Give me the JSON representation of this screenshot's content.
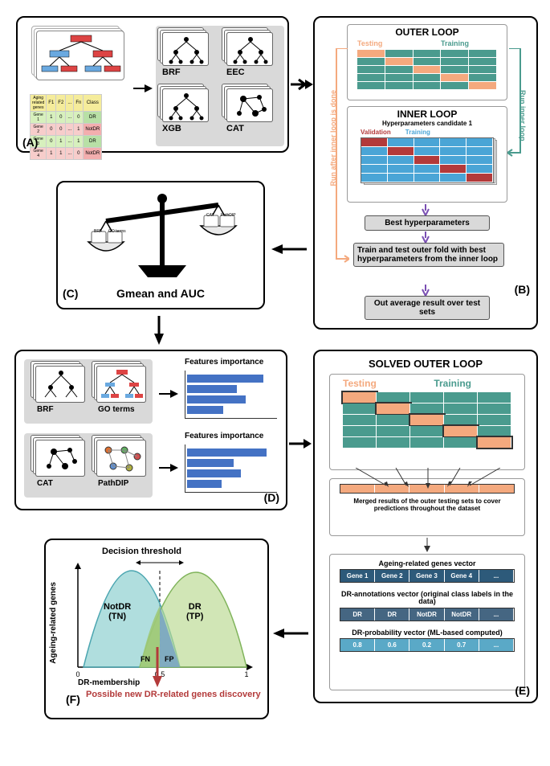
{
  "labels": {
    "A": "(A)",
    "B": "(B)",
    "C": "(C)",
    "D": "(D)",
    "E": "(E)",
    "F": "(F)"
  },
  "panelA": {
    "models": [
      "BRF",
      "EEC",
      "XGB",
      "CAT"
    ],
    "table_header": [
      "Aging related genes",
      "F1",
      "F2",
      "...",
      "Fn",
      "Class"
    ],
    "table_rows": [
      [
        "Gene 1",
        "1",
        "0",
        "...",
        "0",
        "DR"
      ],
      [
        "Gene 2",
        "0",
        "0",
        "...",
        "1",
        "NotDR"
      ],
      [
        "Gene 3",
        "0",
        "1",
        "...",
        "1",
        "DR"
      ],
      [
        "Gene 4",
        "1",
        "1",
        "...",
        "0",
        "NotDR"
      ]
    ],
    "colors": {
      "header_bg": "#f5ec9b",
      "row_colors": [
        "#d7f0bd",
        "#f7cdcb",
        "#d7f0bd",
        "#f7cdcb"
      ],
      "class_colors": [
        "#b8e0a6",
        "#f3aeae",
        "#b8e0a6",
        "#f3aeae"
      ]
    }
  },
  "panelB": {
    "outer_title": "OUTER LOOP",
    "inner_title": "INNER LOOP",
    "testing": "Testing",
    "training": "Training",
    "validation": "Validation",
    "hyperparam_text": "Hyperparameters candidate 1",
    "best_hyper": "Best hyperparameters",
    "train_test": "Train and test outer fold with best hyperparameters from the inner loop",
    "avg_result": "Out average result over test sets",
    "side_left": "Run after inner loop is done",
    "side_right": "Run inner loop",
    "colors": {
      "testing": "#f4a97e",
      "training": "#4a9b8e",
      "validation": "#b33a3a",
      "inner_train": "#4aa5d6"
    }
  },
  "panelC": {
    "caption": "Gmean and AUC",
    "scale_tags": [
      "BRF",
      "GO terms",
      "CAT",
      "PathDIP"
    ]
  },
  "panelD": {
    "feat_title": "Features importance",
    "left": [
      {
        "model": "BRF",
        "second": "GO terms"
      },
      {
        "model": "CAT",
        "second": "PathDIP"
      }
    ],
    "bars": [
      [
        0.85,
        0.55,
        0.65,
        0.4
      ],
      [
        0.88,
        0.52,
        0.6,
        0.38
      ]
    ],
    "bar_color": "#4472c4"
  },
  "panelE": {
    "title": "SOLVED  OUTER LOOP",
    "testing": "Testing",
    "training": "Training",
    "merged_text": "Merged results of the outer testing sets to cover predictions throughout the dataset",
    "vec1_title": "Ageing-related genes vector",
    "vec1": [
      "Gene 1",
      "Gene 2",
      "Gene 3",
      "Gene 4",
      "..."
    ],
    "vec2_title": "DR-annotations vector (original class labels in the data)",
    "vec2": [
      "DR",
      "DR",
      "NotDR",
      "NotDR",
      "..."
    ],
    "vec3_title": "DR-probability vector (ML-based computed)",
    "vec3": [
      "0.8",
      "0.6",
      "0.2",
      "0.7",
      "..."
    ],
    "colors": {
      "testing": "#f4a97e",
      "training": "#4a9b8e",
      "vec1": "#2d5a7a",
      "vec2": "#456682",
      "vec3": "#5aa9c7"
    }
  },
  "panelF": {
    "ylabel": "Ageing-related genes",
    "xlabel": "DR-membership",
    "threshold": "Decision threshold",
    "notdr": "NotDR (TN)",
    "dr": "DR (TP)",
    "fn": "FN",
    "fp": "FP",
    "xticks": [
      "0",
      "0.5",
      "1"
    ],
    "discovery": "Possible new DR-related genes discovery",
    "colors": {
      "notdr_fill": "#8fd0d0",
      "dr_fill": "#b8d98f",
      "fn_fill": "#7aa5c2",
      "fp_fill": "#9fc978"
    }
  }
}
